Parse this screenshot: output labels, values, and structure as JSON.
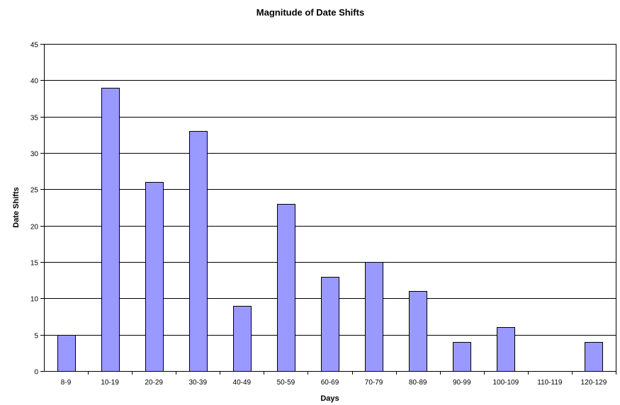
{
  "chart_data": {
    "type": "bar",
    "title": "Magnitude of Date Shifts",
    "xlabel": "Days",
    "ylabel": "Date Shifts",
    "categories": [
      "8-9",
      "10-19",
      "20-29",
      "30-39",
      "40-49",
      "50-59",
      "60-69",
      "70-79",
      "80-89",
      "90-99",
      "100-109",
      "110-119",
      "120-129"
    ],
    "values": [
      5,
      39,
      26,
      33,
      9,
      23,
      13,
      15,
      11,
      4,
      6,
      0,
      4
    ],
    "ylim": [
      0,
      45
    ],
    "yticks": [
      0,
      5,
      10,
      15,
      20,
      25,
      30,
      35,
      40,
      45
    ],
    "grid": true,
    "legend": "none",
    "colors": {
      "bar": "#9999ff",
      "bar_border": "#000000",
      "grid": "#000000"
    }
  }
}
